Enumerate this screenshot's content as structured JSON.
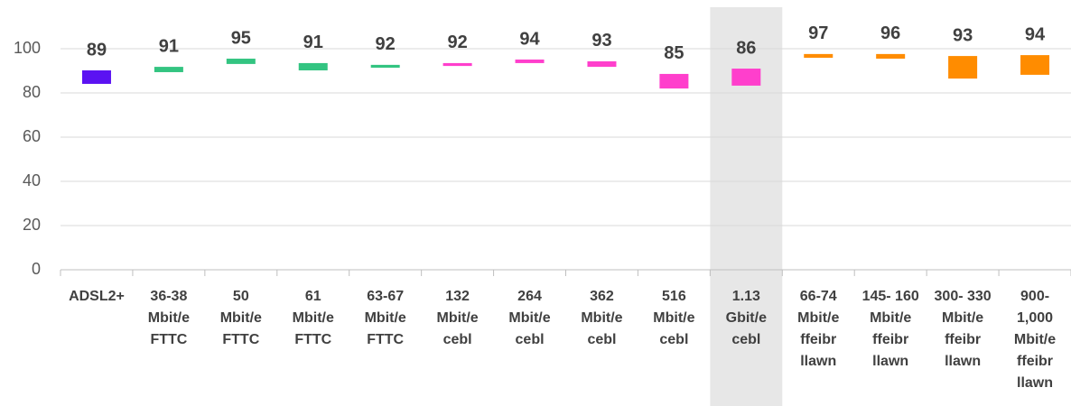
{
  "chart_data": {
    "type": "floating-bar",
    "categories": [
      [
        "ADSL2+"
      ],
      [
        "36-38",
        "Mbit/e",
        "FTTC"
      ],
      [
        "50",
        "Mbit/e",
        "FTTC"
      ],
      [
        "61",
        "Mbit/e",
        "FTTC"
      ],
      [
        "63-67",
        "Mbit/e",
        "FTTC"
      ],
      [
        "132",
        "Mbit/e",
        "cebl"
      ],
      [
        "264",
        "Mbit/e",
        "cebl"
      ],
      [
        "362",
        "Mbit/e",
        "cebl"
      ],
      [
        "516",
        "Mbit/e",
        "cebl"
      ],
      [
        "1.13",
        "Gbit/e",
        "cebl"
      ],
      [
        "66-74",
        "Mbit/e",
        "ffeibr",
        "llawn"
      ],
      [
        "145- 160",
        "Mbit/e",
        "ffeibr",
        "llawn"
      ],
      [
        "300- 330",
        "Mbit/e",
        "ffeibr",
        "llawn"
      ],
      [
        "900-",
        "1,000",
        "Mbit/e",
        "ffeibr",
        "llawn"
      ]
    ],
    "values": [
      89,
      91,
      95,
      91,
      92,
      92,
      94,
      93,
      85,
      86,
      97,
      96,
      93,
      94
    ],
    "low": [
      84.1,
      89.4,
      93.1,
      90.2,
      91.4,
      92.2,
      93.5,
      91.8,
      82.0,
      83.3,
      95.9,
      95.5,
      86.5,
      88.2
    ],
    "high": [
      90.2,
      91.8,
      95.5,
      93.5,
      92.7,
      93.5,
      95.1,
      94.3,
      88.6,
      91.0,
      97.6,
      97.6,
      96.7,
      97.1
    ],
    "colors": [
      "#5b12f2",
      "#33c481",
      "#33c481",
      "#33c481",
      "#33c481",
      "#ff3fcc",
      "#ff3fcc",
      "#ff3fcc",
      "#ff3fcc",
      "#ff3fcc",
      "#ff8c00",
      "#ff8c00",
      "#ff8c00",
      "#ff8c00"
    ],
    "highlight": 9,
    "ylim": [
      0,
      100
    ],
    "yticks": [
      0,
      20,
      40,
      60,
      80,
      100
    ],
    "grid": true
  }
}
